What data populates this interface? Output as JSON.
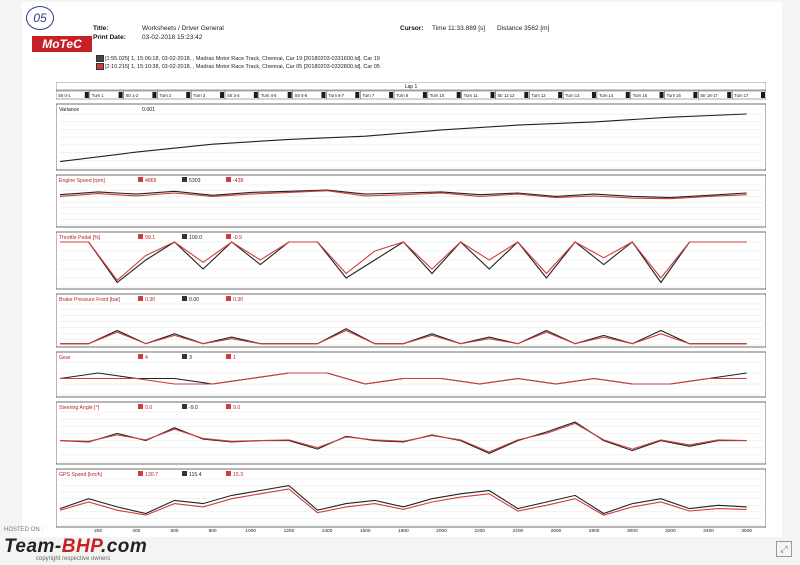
{
  "header": {
    "stamp": "05",
    "title_label": "Title:",
    "title_value": "Worksheets / Driver General",
    "print_date_label": "Print Date:",
    "print_date_value": "03-02-2018 15:23:42",
    "cursor_label": "Cursor:",
    "cursor_time": "Time  11:33.889 [s]",
    "cursor_distance": "Distance  3562 [m]",
    "logo": "MoTeC",
    "run1": "[1:55.025] 1, 15:06:18, 03-02-2018,  , Madras Motor Race Track, Chennai, Car 19 [20180203-0331600.ld], Car 19",
    "run2": "[2:10.215] 1, 15:10:38, 03-02-2018,  , Madras Motor Race Track, Chennai, Car 05 [20180203-0332800.ld], Car 05"
  },
  "lap_label": "Lap 1",
  "segments": [
    "Str 0-1",
    "Turn 1",
    "Str 1-2",
    "Turn 2",
    "Turn 3",
    "Str 3-4",
    "Turn 4-5",
    "Str 5-6",
    "Turn 6-7",
    "Turn 7",
    "Turn 8",
    "Turn 10",
    "Turn 11",
    "Str 11-12",
    "Turn 12",
    "Turn 13",
    "Turn 14",
    "Turn 15",
    "Turn 16",
    "Str 16-17",
    "Turn 17"
  ],
  "colors": {
    "car19": "#222222",
    "car05": "#d03c3c"
  },
  "chart_data": [
    {
      "type": "line",
      "title": "Variance",
      "readout": "0.001",
      "ylim": [
        -2,
        15
      ],
      "ticks": [
        "14",
        "12",
        "10",
        "8",
        "6",
        "4",
        "2",
        "0"
      ],
      "x": [
        0,
        400,
        800,
        1200,
        1600,
        2000,
        2400,
        2800,
        3200,
        3600
      ],
      "series": [
        {
          "name": "Variance",
          "values": [
            0,
            3,
            5.5,
            7,
            8,
            10,
            11.5,
            12.5,
            14,
            15
          ]
        }
      ]
    },
    {
      "type": "line",
      "title": "Engine Speed [rpm]",
      "readouts": [
        "4865",
        "5303",
        "-438"
      ],
      "ylim": [
        0,
        7000
      ],
      "ticks": [
        "7000",
        "6000",
        "5000",
        "4000",
        "3000",
        "2000",
        "1000",
        "0"
      ],
      "x": [
        0,
        200,
        400,
        600,
        800,
        1000,
        1200,
        1400,
        1600,
        1800,
        2000,
        2200,
        2400,
        2600,
        2800,
        3000,
        3200,
        3400,
        3600
      ],
      "series": [
        {
          "name": "Car 19",
          "values": [
            5300,
            5800,
            5400,
            5900,
            5200,
            5700,
            5900,
            6100,
            5400,
            5600,
            5800,
            5300,
            5600,
            5000,
            5400,
            5000,
            4800,
            5200,
            5600
          ]
        },
        {
          "name": "Car 05",
          "values": [
            5000,
            5500,
            5100,
            5600,
            5000,
            5400,
            5700,
            6000,
            5100,
            5300,
            5600,
            5000,
            5400,
            4800,
            5100,
            4700,
            4600,
            5000,
            5300
          ]
        }
      ]
    },
    {
      "type": "line",
      "title": "Throttle Pedal [%]",
      "readouts": [
        "99.1",
        "100.0",
        "-0.9"
      ],
      "ylim": [
        0,
        100
      ],
      "ticks": [
        "100",
        "80",
        "60",
        "40",
        "20",
        "0"
      ],
      "x": [
        0,
        150,
        300,
        450,
        600,
        750,
        900,
        1050,
        1200,
        1350,
        1500,
        1650,
        1800,
        1950,
        2100,
        2250,
        2400,
        2550,
        2700,
        2850,
        3000,
        3150,
        3300,
        3450,
        3600
      ],
      "series": [
        {
          "name": "Car 19",
          "values": [
            100,
            100,
            10,
            60,
            100,
            40,
            100,
            50,
            100,
            100,
            20,
            60,
            100,
            30,
            100,
            40,
            100,
            20,
            100,
            50,
            100,
            10,
            100,
            100,
            100
          ]
        },
        {
          "name": "Car 05",
          "values": [
            100,
            100,
            15,
            70,
            100,
            55,
            100,
            60,
            100,
            100,
            30,
            80,
            100,
            40,
            100,
            60,
            100,
            30,
            100,
            65,
            100,
            20,
            100,
            100,
            100
          ]
        }
      ]
    },
    {
      "type": "line",
      "title": "Brake Pressure Front [bar]",
      "readouts": [
        "0.30",
        "0.00",
        "0.30"
      ],
      "ylim": [
        -4,
        120
      ],
      "ticks": [
        "120",
        "100",
        "80",
        "60",
        "40",
        "20",
        "0",
        "-4"
      ],
      "x": [
        0,
        150,
        300,
        450,
        600,
        750,
        900,
        1050,
        1200,
        1350,
        1500,
        1650,
        1800,
        1950,
        2100,
        2250,
        2400,
        2550,
        2700,
        2850,
        3000,
        3150,
        3300,
        3450,
        3600
      ],
      "series": [
        {
          "name": "Car 19",
          "values": [
            0,
            0,
            40,
            0,
            30,
            0,
            20,
            0,
            0,
            0,
            45,
            0,
            0,
            30,
            0,
            20,
            0,
            40,
            0,
            25,
            0,
            40,
            0,
            0,
            0
          ]
        },
        {
          "name": "Car 05",
          "values": [
            0,
            0,
            35,
            0,
            25,
            0,
            15,
            0,
            0,
            0,
            40,
            0,
            0,
            25,
            0,
            15,
            0,
            35,
            0,
            20,
            0,
            30,
            0,
            0,
            0
          ]
        }
      ]
    },
    {
      "type": "line",
      "title": "Gear",
      "readouts": [
        "4",
        "3",
        "1"
      ],
      "ylim": [
        0,
        6
      ],
      "ticks": [
        "6",
        "4",
        "2",
        "0"
      ],
      "x": [
        0,
        200,
        400,
        600,
        800,
        1000,
        1200,
        1400,
        1600,
        1800,
        2000,
        2200,
        2400,
        2600,
        2800,
        3000,
        3200,
        3400,
        3600
      ],
      "series": [
        {
          "name": "Car 19",
          "values": [
            3,
            4,
            3,
            3,
            2,
            3,
            4,
            4,
            2,
            3,
            3,
            2,
            3,
            2,
            3,
            2,
            2,
            3,
            4
          ]
        },
        {
          "name": "Car 05",
          "values": [
            3,
            3,
            3,
            2,
            2,
            3,
            4,
            4,
            2,
            3,
            3,
            2,
            3,
            2,
            3,
            2,
            2,
            3,
            3
          ]
        }
      ]
    },
    {
      "type": "line",
      "title": "Steering Angle [°]",
      "readouts": [
        "0.0",
        "-9.0",
        "9.0"
      ],
      "ylim": [
        -150,
        200
      ],
      "ticks": [
        "200",
        "150",
        "100",
        "50",
        "0",
        "-50",
        "-100",
        "-150"
      ],
      "x": [
        0,
        150,
        300,
        450,
        600,
        750,
        900,
        1050,
        1200,
        1350,
        1500,
        1650,
        1800,
        1950,
        2100,
        2250,
        2400,
        2550,
        2700,
        2850,
        3000,
        3150,
        3300,
        3450,
        3600
      ],
      "series": [
        {
          "name": "Car 19",
          "values": [
            0,
            -10,
            50,
            0,
            90,
            10,
            -10,
            0,
            0,
            -60,
            30,
            0,
            -10,
            40,
            0,
            -90,
            0,
            60,
            130,
            0,
            -70,
            0,
            -40,
            0,
            0
          ]
        },
        {
          "name": "Car 05",
          "values": [
            0,
            -5,
            40,
            5,
            80,
            15,
            -5,
            0,
            5,
            -50,
            25,
            5,
            -5,
            35,
            5,
            -80,
            5,
            50,
            120,
            5,
            -60,
            5,
            -30,
            5,
            0
          ]
        }
      ]
    },
    {
      "type": "line",
      "title": "GPS Speed [km/h]",
      "readouts": [
        "130.7",
        "115.4",
        "15.3"
      ],
      "ylim": [
        20,
        300
      ],
      "ticks": [
        "300",
        "260",
        "220",
        "180",
        "140",
        "100",
        "60",
        "20"
      ],
      "x": [
        0,
        150,
        300,
        450,
        600,
        750,
        900,
        1050,
        1200,
        1350,
        1500,
        1650,
        1800,
        1950,
        2100,
        2250,
        2400,
        2550,
        2700,
        2850,
        3000,
        3150,
        3300,
        3450,
        3600
      ],
      "series": [
        {
          "name": "Car 19",
          "values": [
            120,
            180,
            130,
            90,
            170,
            150,
            200,
            230,
            260,
            110,
            150,
            170,
            130,
            180,
            210,
            230,
            120,
            160,
            200,
            90,
            150,
            180,
            120,
            140,
            130
          ]
        },
        {
          "name": "Car 05",
          "values": [
            110,
            160,
            110,
            80,
            150,
            130,
            180,
            210,
            240,
            95,
            130,
            150,
            115,
            160,
            190,
            210,
            105,
            140,
            180,
            80,
            130,
            160,
            105,
            120,
            115
          ]
        }
      ]
    }
  ],
  "x_axis": {
    "ticks": [
      "200",
      "400",
      "600",
      "800",
      "1000",
      "1200",
      "1400",
      "1600",
      "1800",
      "2000",
      "2200",
      "2400",
      "2600",
      "2800",
      "3000",
      "3200",
      "3400",
      "3600"
    ],
    "xlim": [
      0,
      3680
    ]
  },
  "watermark": {
    "hosted": "HOSTED ON :",
    "brand_a": "Team-",
    "brand_b": "BHP",
    "brand_c": ".com",
    "rights": "copyright respective owners"
  }
}
